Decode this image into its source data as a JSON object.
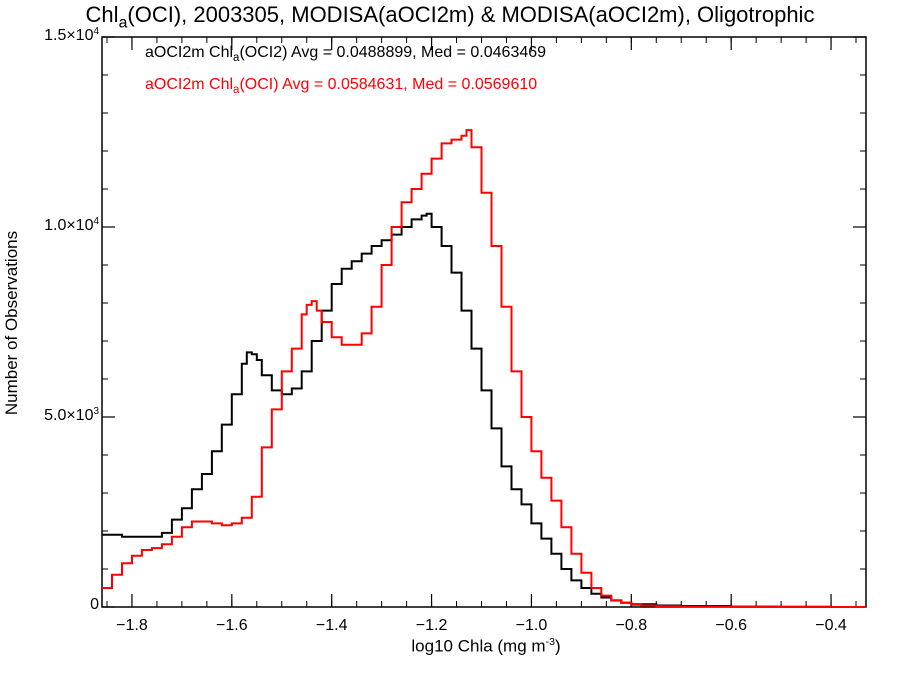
{
  "chart_data": {
    "type": "line",
    "title": {
      "pre": "Chl",
      "sub": "a",
      "post": "(OCI), 2003305, MODISA(aOCI2m) & MODISA(aOCI2m), Oligotrophic"
    },
    "xlabel": {
      "pre": "log10 Chla (mg m",
      "sup": "-3",
      "post": ")"
    },
    "ylabel": "Number of Observations",
    "xlim": [
      -1.86,
      -0.33
    ],
    "ylim": [
      0,
      15000
    ],
    "x_ticks": [
      -1.8,
      -1.6,
      -1.4,
      -1.2,
      -1.0,
      -0.8,
      -0.6,
      -0.4
    ],
    "x_tick_labels": [
      "−1.8",
      "−1.6",
      "−1.4",
      "−1.2",
      "−1.0",
      "−0.8",
      "−0.6",
      "−0.4"
    ],
    "y_ticks": [
      0,
      5000,
      10000,
      15000
    ],
    "y_tick_labels": [
      {
        "mant": "0",
        "exp": ""
      },
      {
        "mant": "5.0×10",
        "exp": "3"
      },
      {
        "mant": "1.0×10",
        "exp": "4"
      },
      {
        "mant": "1.5×10",
        "exp": "4"
      }
    ],
    "legend_placement": "top-left",
    "series": [
      {
        "color": "#000000",
        "label": {
          "pre": "aOCI2m Chl",
          "sub": "a",
          "post": "(OCI2) Avg = 0.0488899, Med = 0.0463469"
        },
        "x": [
          -1.86,
          -1.82,
          -1.78,
          -1.74,
          -1.72,
          -1.7,
          -1.68,
          -1.66,
          -1.64,
          -1.62,
          -1.6,
          -1.58,
          -1.57,
          -1.56,
          -1.55,
          -1.54,
          -1.52,
          -1.5,
          -1.48,
          -1.46,
          -1.44,
          -1.42,
          -1.4,
          -1.38,
          -1.36,
          -1.34,
          -1.32,
          -1.3,
          -1.28,
          -1.26,
          -1.24,
          -1.22,
          -1.21,
          -1.2,
          -1.18,
          -1.16,
          -1.14,
          -1.12,
          -1.1,
          -1.08,
          -1.06,
          -1.04,
          -1.02,
          -1.0,
          -0.98,
          -0.96,
          -0.94,
          -0.92,
          -0.9,
          -0.88,
          -0.86,
          -0.84,
          -0.82,
          -0.8,
          -0.75,
          -0.7,
          -0.6,
          -0.5,
          -0.4,
          -0.33
        ],
        "y": [
          1900,
          1850,
          1850,
          1950,
          2300,
          2600,
          3100,
          3500,
          4100,
          4800,
          5600,
          6400,
          6700,
          6650,
          6500,
          6100,
          5700,
          5600,
          5750,
          6200,
          7000,
          7800,
          8500,
          8900,
          9100,
          9300,
          9500,
          9650,
          9800,
          10000,
          10200,
          10300,
          10350,
          10000,
          9500,
          8800,
          7800,
          6800,
          5700,
          4700,
          3700,
          3100,
          2700,
          2200,
          1800,
          1400,
          1000,
          700,
          500,
          350,
          250,
          170,
          110,
          70,
          40,
          25,
          10,
          5,
          0,
          0
        ]
      },
      {
        "color": "#ff0000",
        "label": {
          "pre": "aOCI2m Chl",
          "sub": "a",
          "post": "(OCI) Avg = 0.0584631, Med = 0.0569610"
        },
        "x": [
          -1.86,
          -1.84,
          -1.82,
          -1.8,
          -1.78,
          -1.76,
          -1.74,
          -1.72,
          -1.7,
          -1.68,
          -1.66,
          -1.64,
          -1.62,
          -1.6,
          -1.58,
          -1.56,
          -1.54,
          -1.52,
          -1.5,
          -1.48,
          -1.46,
          -1.45,
          -1.44,
          -1.43,
          -1.42,
          -1.4,
          -1.38,
          -1.36,
          -1.34,
          -1.32,
          -1.3,
          -1.28,
          -1.26,
          -1.24,
          -1.22,
          -1.2,
          -1.18,
          -1.16,
          -1.14,
          -1.13,
          -1.12,
          -1.1,
          -1.08,
          -1.06,
          -1.04,
          -1.02,
          -1.0,
          -0.98,
          -0.96,
          -0.94,
          -0.92,
          -0.9,
          -0.88,
          -0.86,
          -0.84,
          -0.82,
          -0.8,
          -0.78,
          -0.75,
          -0.7,
          -0.6,
          -0.5,
          -0.4,
          -0.33
        ],
        "y": [
          500,
          850,
          1150,
          1350,
          1500,
          1550,
          1650,
          1850,
          2100,
          2250,
          2250,
          2200,
          2150,
          2200,
          2350,
          2900,
          4200,
          5200,
          6200,
          6800,
          7700,
          7950,
          8050,
          7800,
          7500,
          7100,
          6900,
          6900,
          7200,
          7900,
          9000,
          10000,
          10650,
          11000,
          11400,
          11800,
          12200,
          12300,
          12400,
          12550,
          12100,
          10900,
          9500,
          7900,
          6200,
          5000,
          4100,
          3400,
          2800,
          2100,
          1400,
          900,
          500,
          300,
          180,
          110,
          60,
          40,
          20,
          10,
          5,
          0,
          0,
          0
        ]
      }
    ]
  }
}
